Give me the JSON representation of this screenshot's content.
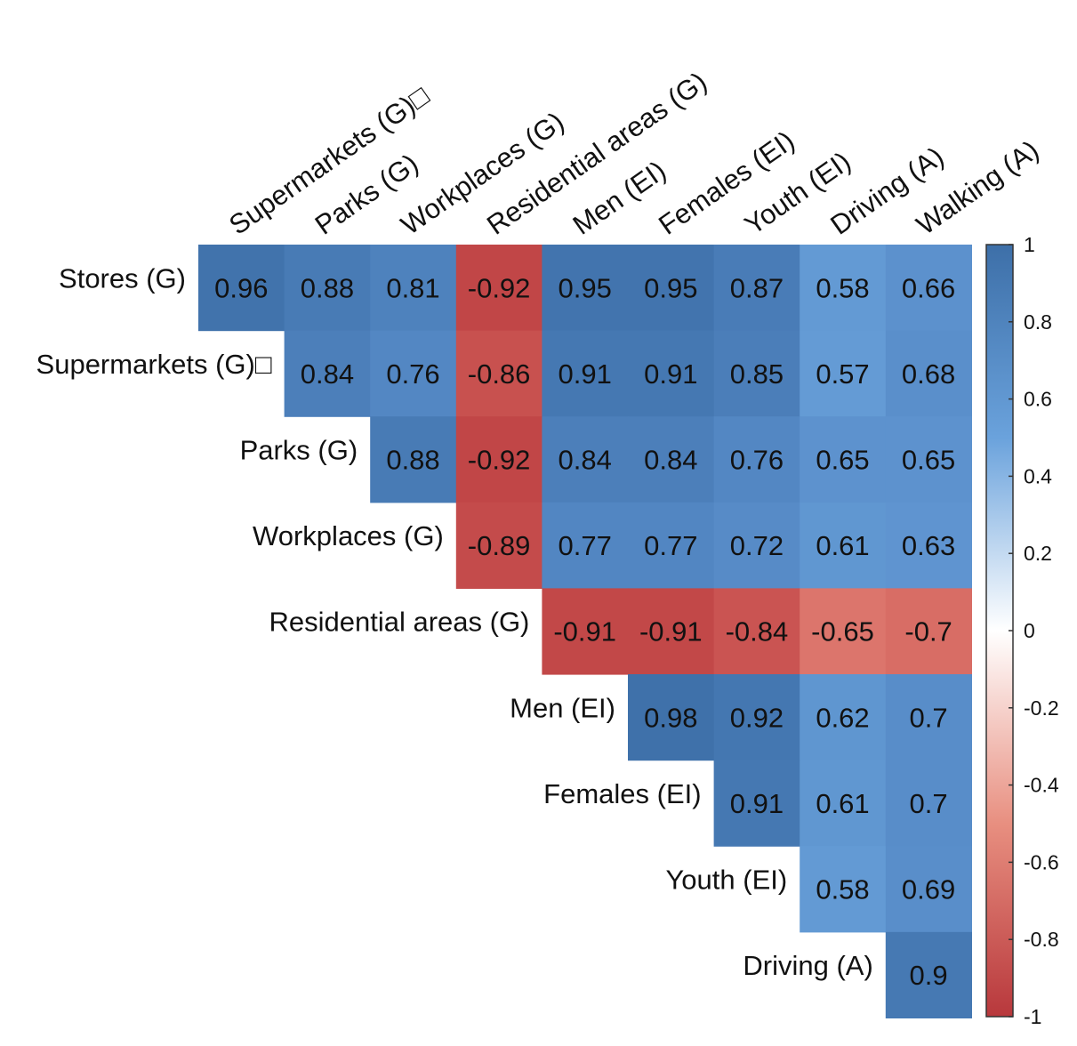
{
  "chart_data": {
    "type": "heatmap",
    "title": "",
    "row_labels": [
      "Stores (G)",
      "Supermarkets (G)□",
      "Parks (G)",
      "Workplaces (G)",
      "Residential areas (G)",
      "Men (EI)",
      "Females (EI)",
      "Youth (EI)",
      "Driving (A)"
    ],
    "column_labels": [
      "Supermarkets (G)□",
      "Parks (G)",
      "Workplaces (G)",
      "Residential areas (G)",
      "Men (EI)",
      "Females (EI)",
      "Youth (EI)",
      "Driving (A)",
      "Walking (A)"
    ],
    "layout": "upper-triangle",
    "values": [
      [
        0.96,
        0.88,
        0.81,
        -0.92,
        0.95,
        0.95,
        0.87,
        0.58,
        0.66
      ],
      [
        null,
        0.84,
        0.76,
        -0.86,
        0.91,
        0.91,
        0.85,
        0.57,
        0.68
      ],
      [
        null,
        null,
        0.88,
        -0.92,
        0.84,
        0.84,
        0.76,
        0.65,
        0.65
      ],
      [
        null,
        null,
        null,
        -0.89,
        0.77,
        0.77,
        0.72,
        0.61,
        0.63
      ],
      [
        null,
        null,
        null,
        null,
        -0.91,
        -0.91,
        -0.84,
        -0.65,
        -0.7
      ],
      [
        null,
        null,
        null,
        null,
        null,
        0.98,
        0.92,
        0.62,
        0.7
      ],
      [
        null,
        null,
        null,
        null,
        null,
        null,
        0.91,
        0.61,
        0.7
      ],
      [
        null,
        null,
        null,
        null,
        null,
        null,
        null,
        0.58,
        0.69
      ],
      [
        null,
        null,
        null,
        null,
        null,
        null,
        null,
        null,
        0.9
      ]
    ],
    "value_range": [
      -1,
      1
    ],
    "colorbar": {
      "placement": "right",
      "ticks": [
        1,
        0.8,
        0.6,
        0.4,
        0.2,
        0,
        -0.2,
        -0.4,
        -0.6,
        -0.8,
        -1
      ],
      "tick_labels": [
        "1",
        "0.8",
        "0.6",
        "0.4",
        "0.2",
        "0",
        "-0.2",
        "-0.4",
        "-0.6",
        "-0.8",
        "-1"
      ]
    },
    "colors": {
      "negative": "#b2182b",
      "neutral": "#ffffff",
      "positive": "#2166ac"
    }
  }
}
